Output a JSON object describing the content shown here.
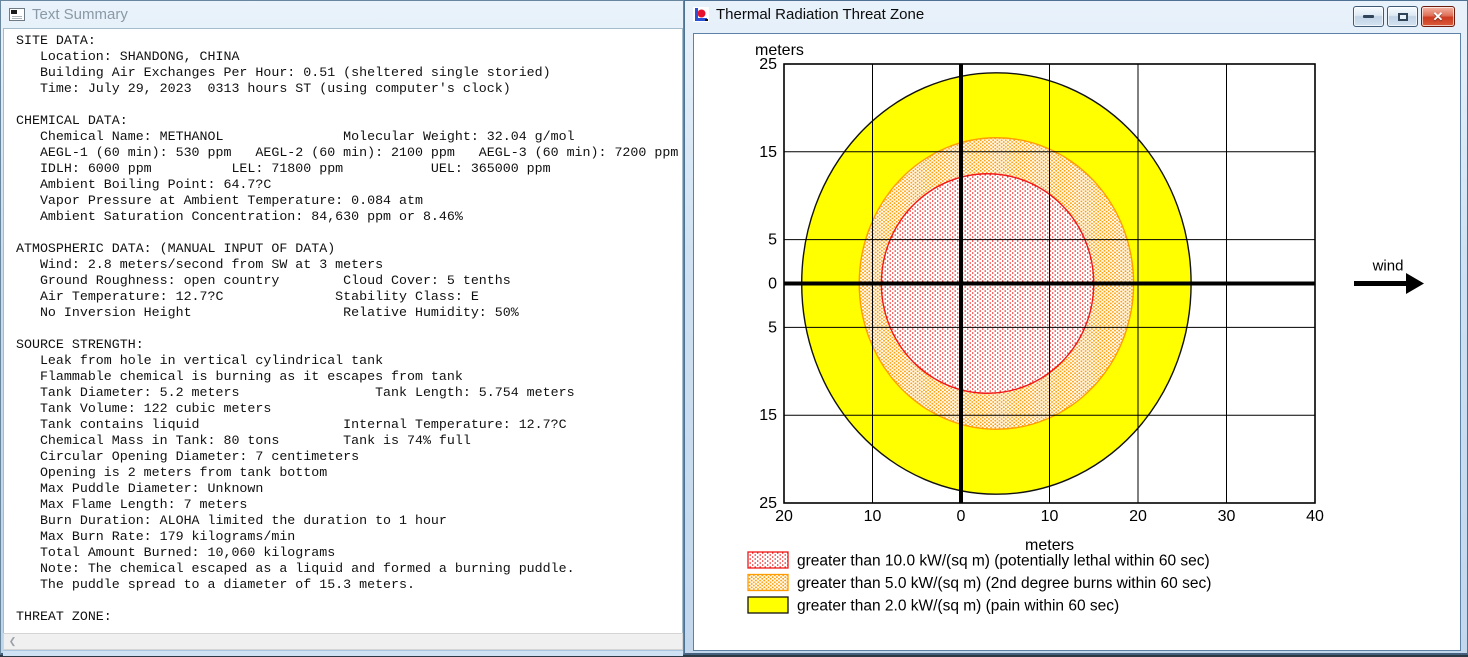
{
  "left_window": {
    "title": "Text Summary",
    "icon": "document-icon",
    "scrollbar": {
      "left_arrow_icon": "chevron-left",
      "glyph": "❮"
    },
    "lines": [
      "SITE DATA:",
      "   Location: SHANDONG, CHINA",
      "   Building Air Exchanges Per Hour: 0.51 (sheltered single storied)",
      "   Time: July 29, 2023  0313 hours ST (using computer's clock)",
      "",
      "CHEMICAL DATA:",
      "   Chemical Name: METHANOL               Molecular Weight: 32.04 g/mol",
      "   AEGL-1 (60 min): 530 ppm   AEGL-2 (60 min): 2100 ppm   AEGL-3 (60 min): 7200 ppm",
      "   IDLH: 6000 ppm          LEL: 71800 ppm           UEL: 365000 ppm",
      "   Ambient Boiling Point: 64.7?C",
      "   Vapor Pressure at Ambient Temperature: 0.084 atm",
      "   Ambient Saturation Concentration: 84,630 ppm or 8.46%",
      "",
      "ATMOSPHERIC DATA: (MANUAL INPUT OF DATA)",
      "   Wind: 2.8 meters/second from SW at 3 meters",
      "   Ground Roughness: open country        Cloud Cover: 5 tenths",
      "   Air Temperature: 12.7?C              Stability Class: E",
      "   No Inversion Height                   Relative Humidity: 50%",
      "",
      "SOURCE STRENGTH:",
      "   Leak from hole in vertical cylindrical tank",
      "   Flammable chemical is burning as it escapes from tank",
      "   Tank Diameter: 5.2 meters                 Tank Length: 5.754 meters",
      "   Tank Volume: 122 cubic meters",
      "   Tank contains liquid                  Internal Temperature: 12.7?C",
      "   Chemical Mass in Tank: 80 tons        Tank is 74% full",
      "   Circular Opening Diameter: 7 centimeters",
      "   Opening is 2 meters from tank bottom",
      "   Max Puddle Diameter: Unknown",
      "   Max Flame Length: 7 meters",
      "   Burn Duration: ALOHA limited the duration to 1 hour",
      "   Max Burn Rate: 179 kilograms/min",
      "   Total Amount Burned: 10,060 kilograms",
      "   Note: The chemical escaped as a liquid and formed a burning puddle.",
      "   The puddle spread to a diameter of 15.3 meters.",
      "",
      "THREAT ZONE:"
    ]
  },
  "right_window": {
    "title": "Thermal Radiation Threat Zone",
    "icon": "threat-zone-plot-icon",
    "controls": [
      "minimize-icon",
      "maximize-icon",
      "close-icon"
    ]
  },
  "chart_data": {
    "type": "area",
    "title": "Thermal Radiation Threat Zone",
    "xlabel": "meters",
    "ylabel": "meters",
    "xlim": [
      -20,
      40
    ],
    "ylim": [
      -25,
      25
    ],
    "x_ticks": [
      -20,
      -10,
      0,
      10,
      20,
      30,
      40
    ],
    "x_tick_labels": [
      "20",
      "10",
      "0",
      "10",
      "20",
      "30",
      "40"
    ],
    "y_ticks": [
      25,
      15,
      5,
      0,
      -5,
      -15,
      -25
    ],
    "y_tick_labels": [
      "25",
      "15",
      "5",
      "0",
      "5",
      "15",
      "25"
    ],
    "grid": true,
    "zero_axes_bold": true,
    "legend_position": "bottom-left",
    "wind": {
      "label": "wind",
      "direction": "right"
    },
    "zones": [
      {
        "name": "lethal-zone",
        "threshold": "greater than 10.0 kW/(sq m)",
        "effect": "potentially lethal within 60 sec",
        "legend_label": "greater than 10.0 kW/(sq m) (potentially lethal within 60 sec)",
        "fill_style": "dots-red",
        "outline_color": "#f01818",
        "dot_color": "#f01818",
        "center": [
          3,
          0
        ],
        "radius_x_m": 12,
        "radius_y_m": 12.5
      },
      {
        "name": "second-degree-burns-zone",
        "threshold": "greater than 5.0 kW/(sq m)",
        "effect": "2nd degree burns within 60 sec",
        "legend_label": "greater than 5.0 kW/(sq m) (2nd degree burns within 60 sec)",
        "fill_style": "dots-orange",
        "outline_color": "#ff9d00",
        "dot_color": "#ff9d00",
        "center": [
          4,
          0
        ],
        "radius_x_m": 15.5,
        "radius_y_m": 16.6
      },
      {
        "name": "pain-zone",
        "threshold": "greater than 2.0 kW/(sq m)",
        "effect": "pain within 60 sec",
        "legend_label": "greater than 2.0 kW/(sq m) (pain within 60 sec)",
        "fill_style": "solid",
        "fill_color": "#ffff00",
        "outline_color": "#111111",
        "center": [
          4,
          0
        ],
        "radius_x_m": 22,
        "radius_y_m": 24
      }
    ]
  }
}
